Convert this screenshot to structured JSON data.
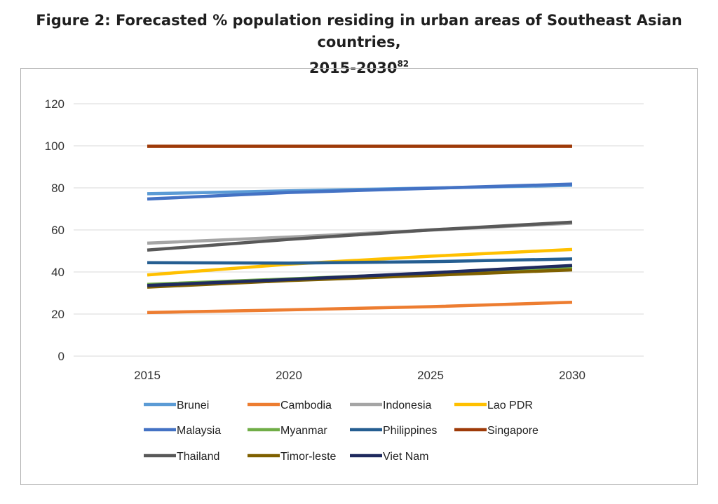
{
  "header": {
    "title_line1": "Figure 2: Forecasted % population residing in urban areas of Southeast Asian countries,",
    "title_line2": "2015-2030",
    "footnote": "82"
  },
  "chart_data": {
    "type": "line",
    "x": [
      "2015",
      "2020",
      "2025",
      "2030"
    ],
    "ylim": [
      0,
      120
    ],
    "yticks": [
      "0",
      "20",
      "40",
      "60",
      "80",
      "100",
      "120"
    ],
    "grid": true,
    "legend_position": "bottom",
    "series": [
      {
        "name": "Brunei",
        "color": "#5b9bd5",
        "values": [
          77.2,
          78.6,
          79.9,
          81.2
        ]
      },
      {
        "name": "Cambodia",
        "color": "#ed7d31",
        "values": [
          20.7,
          22.0,
          23.5,
          25.6
        ]
      },
      {
        "name": "Indonesia",
        "color": "#a5a5a5",
        "values": [
          53.7,
          56.6,
          59.9,
          63.2
        ]
      },
      {
        "name": "Lao PDR",
        "color": "#ffc000",
        "values": [
          38.6,
          43.7,
          47.5,
          50.7
        ]
      },
      {
        "name": "Malaysia",
        "color": "#4472c4",
        "values": [
          74.7,
          77.8,
          79.8,
          81.8
        ]
      },
      {
        "name": "Myanmar",
        "color": "#70ad47",
        "values": [
          34.1,
          36.7,
          39.3,
          42.2
        ]
      },
      {
        "name": "Philippines",
        "color": "#255e91",
        "values": [
          44.4,
          44.2,
          44.9,
          46.2
        ]
      },
      {
        "name": "Singapore",
        "color": "#9e3a08",
        "values": [
          99.8,
          99.8,
          99.8,
          99.8
        ]
      },
      {
        "name": "Thailand",
        "color": "#595959",
        "values": [
          50.4,
          55.5,
          60.0,
          63.7
        ]
      },
      {
        "name": "Timor-leste",
        "color": "#7f6000",
        "values": [
          32.8,
          35.9,
          38.4,
          41.0
        ]
      },
      {
        "name": "Viet Nam",
        "color": "#1f2a5e",
        "values": [
          33.6,
          36.4,
          39.6,
          43.1
        ]
      }
    ]
  }
}
